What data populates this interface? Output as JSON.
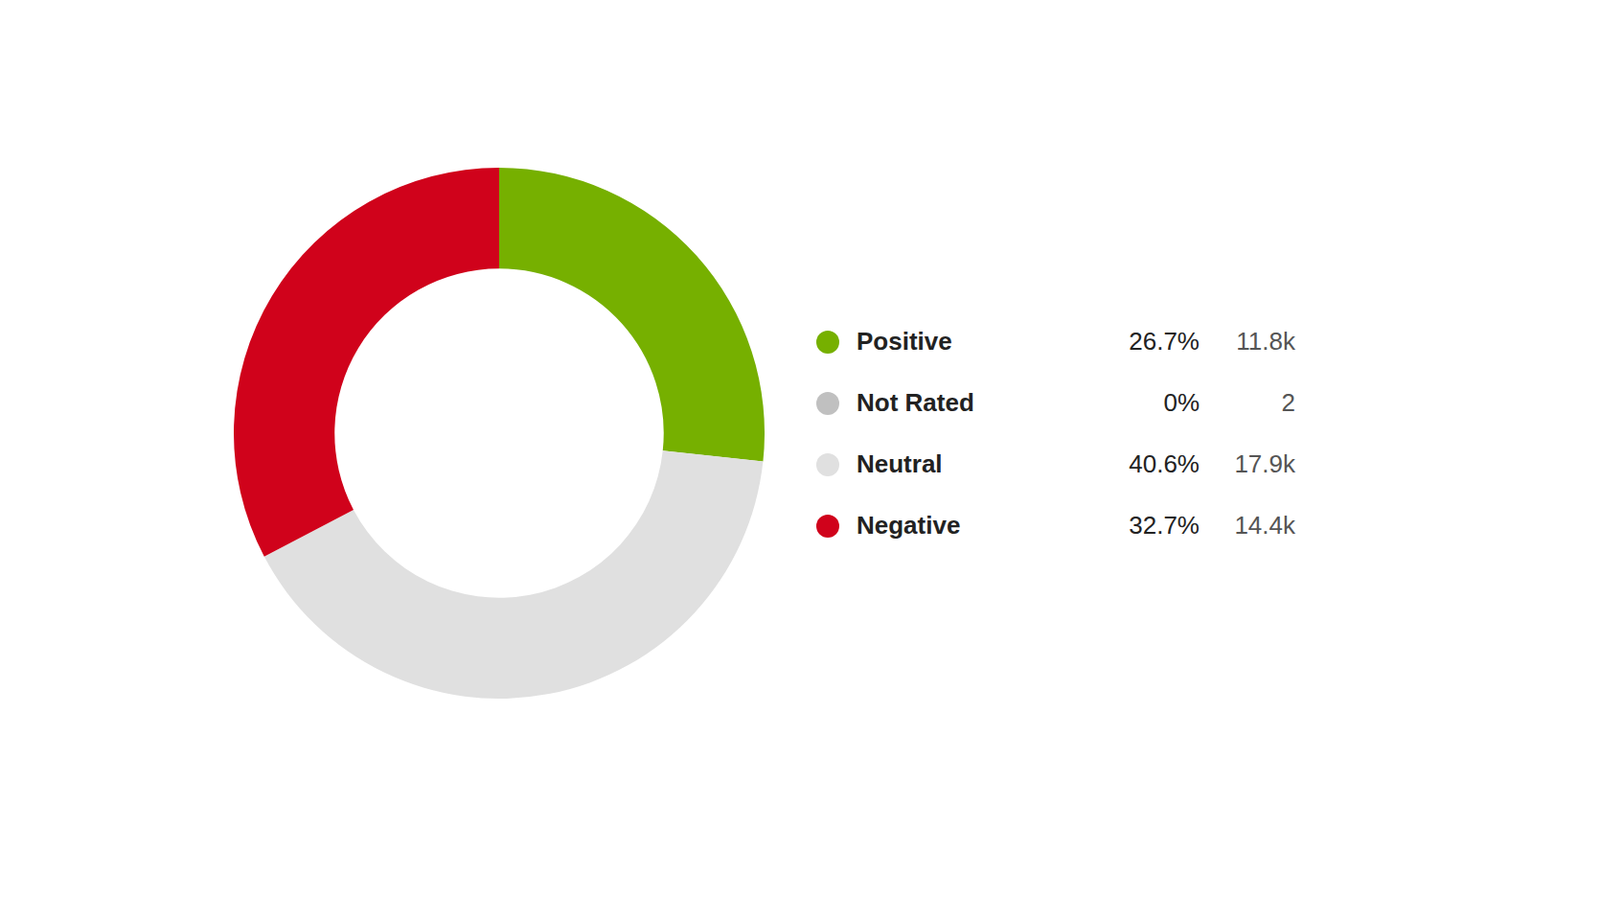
{
  "chart_data": {
    "type": "doughnut",
    "categories": [
      "Positive",
      "Not Rated",
      "Neutral",
      "Negative"
    ],
    "values": [
      26.7,
      0,
      40.6,
      32.7
    ],
    "value_labels": [
      "26.7%",
      "0%",
      "40.6%",
      "32.7%"
    ],
    "count_labels": [
      "11.8k",
      "2",
      "17.9k",
      "14.4k"
    ],
    "colors": [
      "#76b000",
      "#c0c0c0",
      "#e0e0e0",
      "#d0021b"
    ],
    "legend": "right"
  }
}
